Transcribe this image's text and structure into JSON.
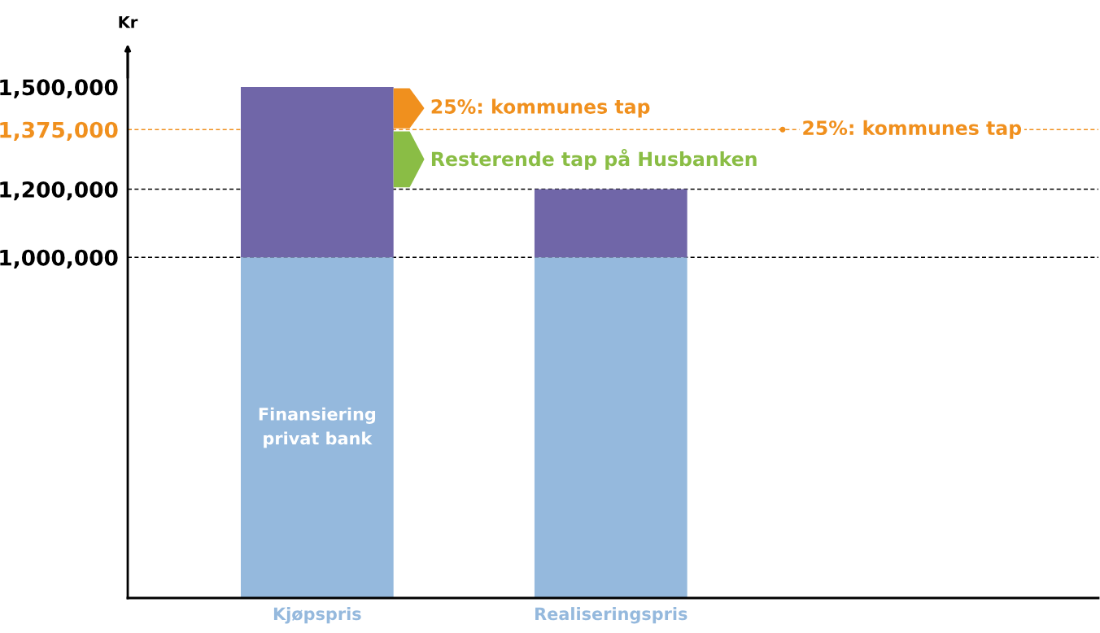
{
  "chart_data": {
    "type": "bar",
    "stacked": true,
    "ylabel": "Kr",
    "categories": [
      "Kjøpspris",
      "Realiseringspris"
    ],
    "series": [
      {
        "name": "Finansiering privat bank",
        "color": "#95b9dd",
        "values": [
          1000000,
          1000000
        ]
      },
      {
        "color": "#7066a8",
        "values": [
          500000,
          200000
        ]
      }
    ],
    "ylim": [
      0,
      1600000
    ],
    "yticks": [
      {
        "value": 1000000,
        "label": "1,000,000"
      },
      {
        "value": 1200000,
        "label": "1,200,000"
      },
      {
        "value": 1375000,
        "label": "1,375,000"
      },
      {
        "value": 1500000,
        "label": "1,500,000"
      }
    ],
    "ref_lines": [
      {
        "axis": "y",
        "value": 1375000,
        "label": "25%: kommunes tap",
        "color": "#f0901e",
        "line_style": "dashed"
      },
      {
        "axis": "y",
        "value": 1200000,
        "color": "#000000",
        "line_style": "dashed"
      },
      {
        "axis": "y",
        "value": 1000000,
        "color": "#000000",
        "line_style": "dashed"
      }
    ],
    "annotations": [
      "25%: kommunes tap",
      "Resterende tap på Husbanken"
    ],
    "grid": false,
    "legend": false
  }
}
